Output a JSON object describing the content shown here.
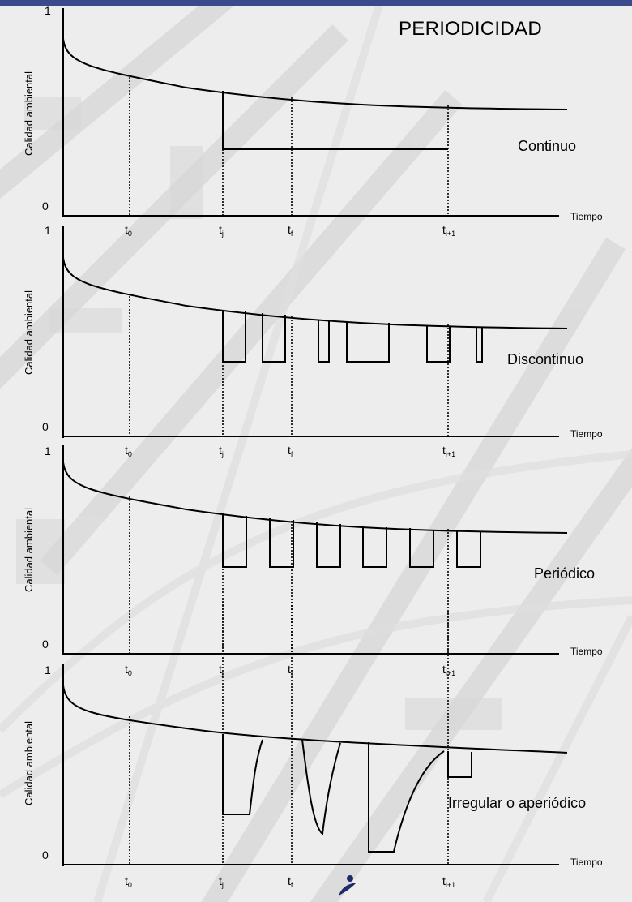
{
  "title": "PERIODICIDAD",
  "colors": {
    "background": "#eeeeee",
    "top_bar": "#3a4a8c",
    "stroke": "#000000"
  },
  "panels": [
    {
      "label": "Continuo",
      "ylabel": "Calidad ambiental",
      "y_top": "1",
      "y_bottom": "0",
      "xlabel": "Tiempo",
      "ticks": [
        {
          "base": "t",
          "sub": "0"
        },
        {
          "base": "t",
          "sub": "j"
        },
        {
          "base": "t",
          "sub": "f"
        },
        {
          "base": "t",
          "sub": "i+1"
        }
      ]
    },
    {
      "label": "Discontinuo",
      "ylabel": "Calidad ambiental",
      "y_top": "1",
      "y_bottom": "0",
      "xlabel": "Tiempo",
      "ticks": [
        {
          "base": "t",
          "sub": "0"
        },
        {
          "base": "t",
          "sub": "j"
        },
        {
          "base": "t",
          "sub": "f"
        },
        {
          "base": "t",
          "sub": "i+1"
        }
      ]
    },
    {
      "label": "Periódico",
      "ylabel": "Calidad ambiental",
      "y_top": "1",
      "y_bottom": "0",
      "xlabel": "Tiempo",
      "ticks": [
        {
          "base": "t",
          "sub": "0"
        },
        {
          "base": "t",
          "sub": "j"
        },
        {
          "base": "t",
          "sub": "f"
        },
        {
          "base": "t",
          "sub": "i+1"
        }
      ]
    },
    {
      "label": "Irregular o aperiódico",
      "ylabel": "Calidad ambiental",
      "y_top": "1",
      "y_bottom": "0",
      "xlabel": "Tiempo",
      "ticks": [
        {
          "base": "t",
          "sub": "0"
        },
        {
          "base": "t",
          "sub": "j"
        },
        {
          "base": "t",
          "sub": "f"
        },
        {
          "base": "t",
          "sub": "i+1"
        }
      ]
    }
  ]
}
